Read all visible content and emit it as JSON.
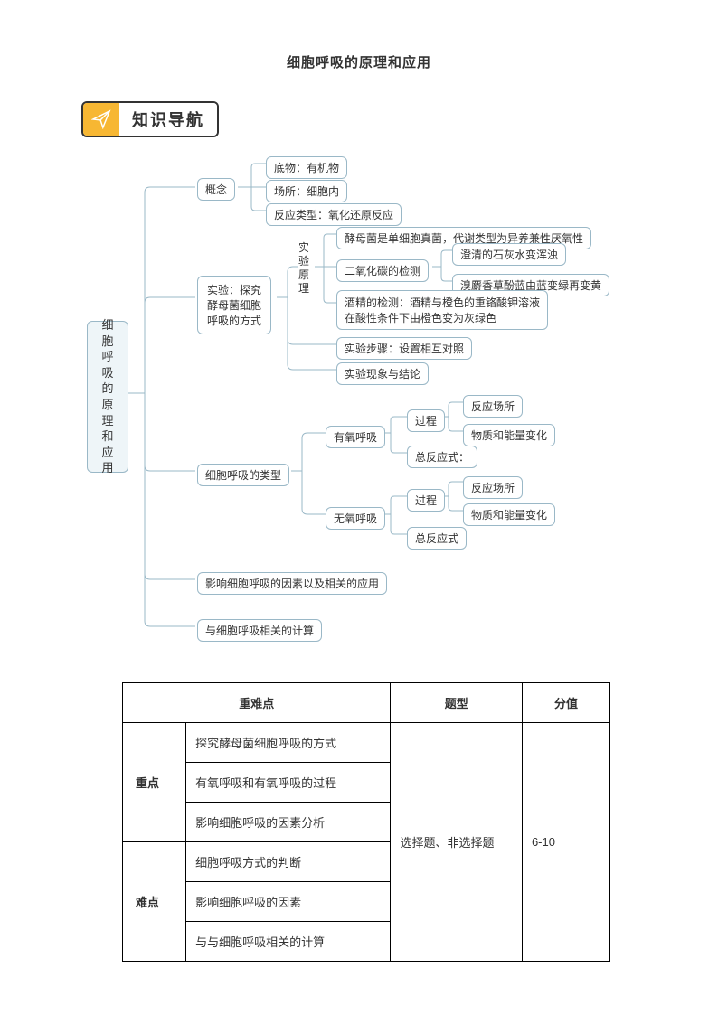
{
  "title": "细胞呼吸的原理和应用",
  "badge": {
    "text": "知识导航"
  },
  "diagram": {
    "root": "细胞呼吸的原理和应用",
    "concept": {
      "label": "概念",
      "items": [
        "底物：有机物",
        "场所：细胞内",
        "反应类型：氧化还原反应"
      ]
    },
    "experiment": {
      "label1": "实验：探究",
      "label2": "酵母菌细胞",
      "label3": "呼吸的方式",
      "principle_label": "实验原理",
      "p1": "酵母菌是单细胞真菌，代谢类型为异养兼性厌氧性",
      "p2": "二氧化碳的检测",
      "p2a": "澄清的石灰水变浑浊",
      "p2b": "溴麝香草酚蓝由蓝变绿再变黄",
      "p3a": "酒精的检测：酒精与橙色的重铬酸钾溶液",
      "p3b": "在酸性条件下由橙色变为灰绿色",
      "steps": "实验步骤：设置相互对照",
      "conclusion": "实验现象与结论"
    },
    "types": {
      "label": "细胞呼吸的类型",
      "aerobic": "有氧呼吸",
      "anaerobic": "无氧呼吸",
      "process": "过程",
      "place": "反应场所",
      "change": "物质和能量变化",
      "equation1": "总反应式：",
      "equation2": "总反应式"
    },
    "factors": "影响细胞呼吸的因素以及相关的应用",
    "calc": "与细胞呼吸相关的计算"
  },
  "table": {
    "headers": [
      "重难点",
      "题型",
      "分值"
    ],
    "key_label": "重点",
    "diff_label": "难点",
    "key_points": [
      "探究酵母菌细胞呼吸的方式",
      "有氧呼吸和有氧呼吸的过程",
      "影响细胞呼吸的因素分析"
    ],
    "diff_points": [
      "细胞呼吸方式的判断",
      "影响细胞呼吸的因素",
      "与与细胞呼吸相关的计算"
    ],
    "qtype": "选择题、非选择题",
    "score": "6-10"
  },
  "style": {
    "node_border": "#9ab8c7",
    "connector": "#9ab8c7",
    "root_bg": "#eef5f8",
    "badge_bg": "#f7b733"
  }
}
